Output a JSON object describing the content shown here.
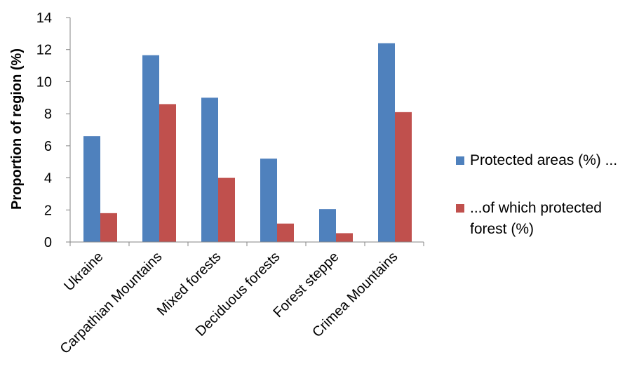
{
  "chart_data": {
    "type": "bar",
    "categories": [
      "Ukraine",
      "Carpathian Mountains",
      "Mixed forests",
      "Deciduous forests",
      "Forest steppe",
      "Crimea Mountains"
    ],
    "series": [
      {
        "name": "Protected areas (%) ...",
        "values": [
          6.6,
          11.65,
          9.0,
          5.2,
          2.05,
          12.4
        ],
        "color": "#4f81bd"
      },
      {
        "name": "...of which protected forest (%)",
        "values": [
          1.8,
          8.6,
          4.0,
          1.15,
          0.55,
          8.1
        ],
        "color": "#c0504d"
      }
    ],
    "ylabel": "Proportion of region (%)",
    "xlabel": "",
    "ylim": [
      0,
      14
    ],
    "yticks": [
      0,
      2,
      4,
      6,
      8,
      10,
      12,
      14
    ],
    "grid": false,
    "legend_position": "right"
  }
}
